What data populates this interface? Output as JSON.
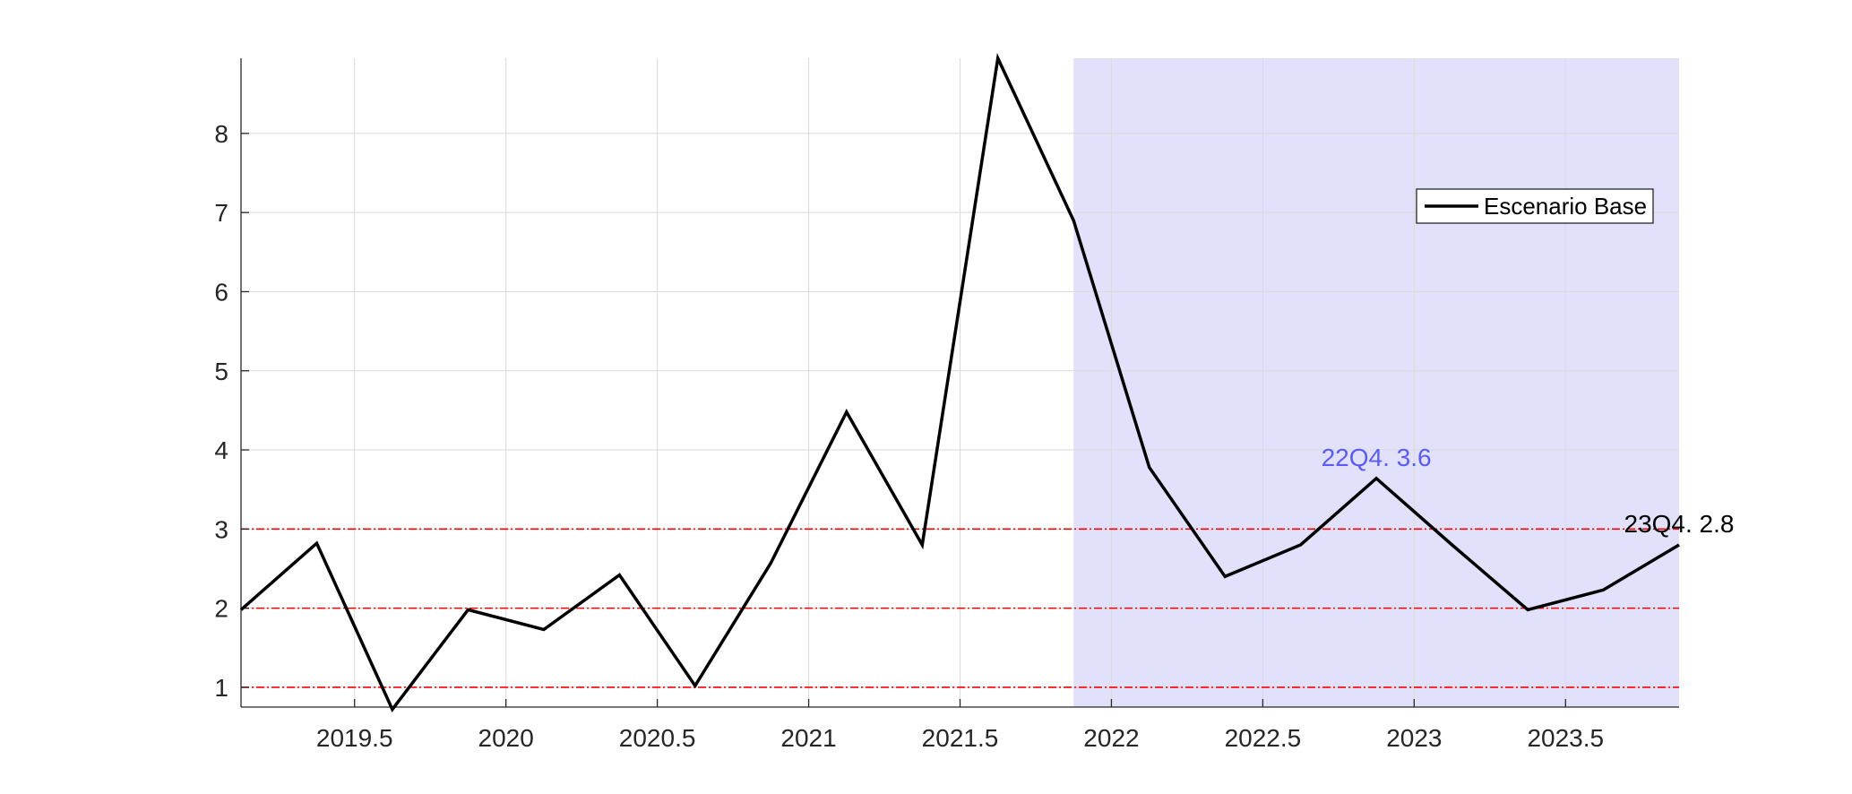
{
  "chart_data": {
    "type": "line",
    "x": [
      2019.125,
      2019.375,
      2019.625,
      2019.875,
      2020.125,
      2020.375,
      2020.625,
      2020.875,
      2021.125,
      2021.375,
      2021.625,
      2021.875,
      2022.125,
      2022.375,
      2022.625,
      2022.875,
      2023.125,
      2023.375,
      2023.625,
      2023.875
    ],
    "series": [
      {
        "name": "Escenario Base",
        "color": "#000000",
        "values": [
          1.98,
          2.82,
          0.72,
          1.98,
          1.73,
          2.42,
          1.02,
          2.57,
          4.48,
          2.8,
          8.95,
          6.9,
          3.78,
          2.4,
          2.8,
          3.64,
          2.8,
          1.98,
          2.23,
          2.8
        ]
      }
    ],
    "xlim": [
      2019.125,
      2023.875
    ],
    "ylim": [
      0.75,
      8.95
    ],
    "x_ticks": [
      2019.5,
      2020,
      2020.5,
      2021,
      2021.5,
      2022,
      2022.5,
      2023,
      2023.5
    ],
    "x_tick_labels": [
      "2019.5",
      "2020",
      "2020.5",
      "2021",
      "2021.5",
      "2022",
      "2022.5",
      "2023",
      "2023.5"
    ],
    "y_ticks": [
      1,
      2,
      3,
      4,
      5,
      6,
      7,
      8
    ],
    "y_tick_labels": [
      "1",
      "2",
      "3",
      "4",
      "5",
      "6",
      "7",
      "8"
    ],
    "grid": true,
    "legend": {
      "placement": "top-right",
      "entries": [
        "Escenario Base"
      ]
    },
    "forecast_shade": {
      "x_start": 2021.875,
      "x_end": 2023.875,
      "color": "#e1e1fb"
    },
    "reference_lines": {
      "values": [
        1,
        2,
        3
      ],
      "color": "#ff0000",
      "style": "dash-dot"
    },
    "annotations": [
      {
        "text": "22Q4. 3.6",
        "x": 2022.875,
        "y": 3.64,
        "color": "#5a5aff"
      },
      {
        "text": "23Q4. 2.8",
        "x": 2023.875,
        "y": 2.8,
        "color": "#000000"
      }
    ]
  }
}
